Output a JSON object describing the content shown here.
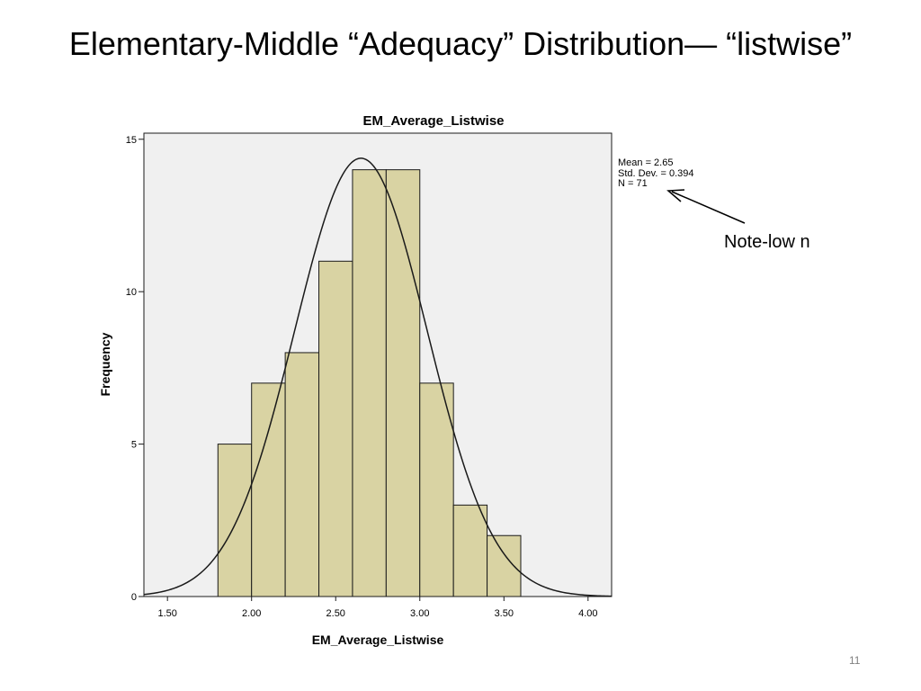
{
  "slide": {
    "title": "Elementary-Middle “Adequacy” Distribution— “listwise”",
    "note": "Note-low n",
    "page_number": "11"
  },
  "stats": {
    "mean": "Mean = 2.65",
    "std_dev": "Std. Dev. = 0.394",
    "n": "N = 71"
  },
  "chart_data": {
    "type": "bar",
    "title": "EM_Average_Listwise",
    "xlabel": "EM_Average_Listwise",
    "ylabel": "Frequency",
    "xlim": [
      1.36,
      4.14
    ],
    "ylim": [
      0,
      15.2
    ],
    "x_ticks": [
      "1.50",
      "2.00",
      "2.50",
      "3.00",
      "3.50",
      "4.00"
    ],
    "x_tick_values": [
      1.5,
      2.0,
      2.5,
      3.0,
      3.5,
      4.0
    ],
    "y_ticks": [
      "0",
      "5",
      "10",
      "15"
    ],
    "y_tick_values": [
      0,
      5,
      10,
      15
    ],
    "bins": [
      {
        "start": 1.8,
        "end": 2.0,
        "count": 5
      },
      {
        "start": 2.0,
        "end": 2.2,
        "count": 7
      },
      {
        "start": 2.2,
        "end": 2.4,
        "count": 8
      },
      {
        "start": 2.4,
        "end": 2.6,
        "count": 11
      },
      {
        "start": 2.6,
        "end": 2.8,
        "count": 14
      },
      {
        "start": 2.8,
        "end": 3.0,
        "count": 14
      },
      {
        "start": 3.0,
        "end": 3.2,
        "count": 7
      },
      {
        "start": 3.2,
        "end": 3.4,
        "count": 3
      },
      {
        "start": 3.4,
        "end": 3.6,
        "count": 2
      }
    ],
    "normal_curve": {
      "mean": 2.65,
      "std_dev": 0.394,
      "n": 71
    },
    "colors": {
      "bar_fill": "#d9d3a3",
      "bar_stroke": "#1a1a1a",
      "plot_bg": "#f0f0f0",
      "curve": "#1a1a1a"
    },
    "grid": false
  }
}
